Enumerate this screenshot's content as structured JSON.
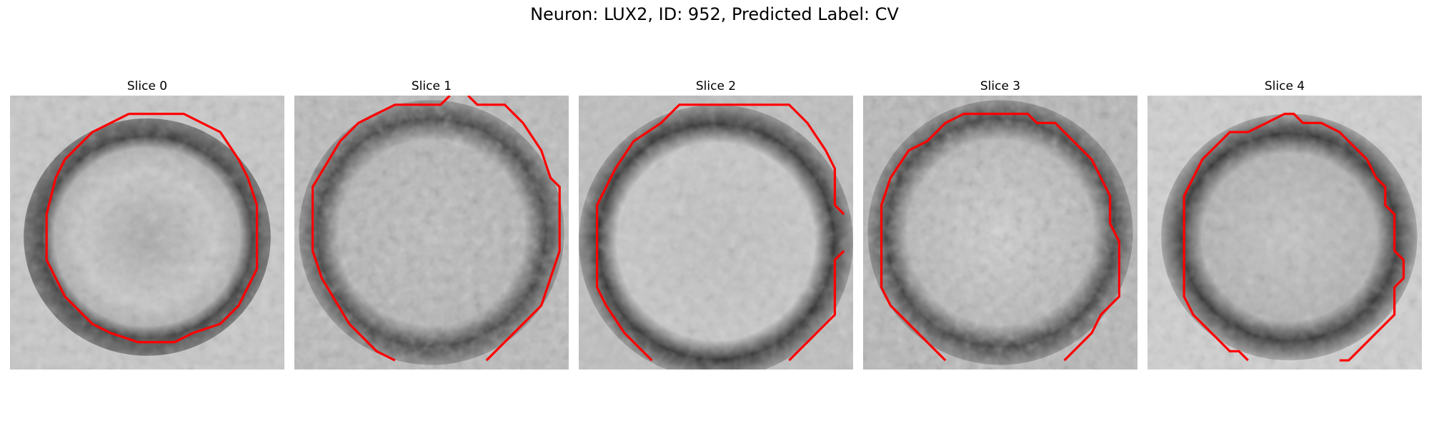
{
  "figure": {
    "title": "Neuron: LUX2, ID: 952, Predicted Label: CV"
  },
  "panels": [
    {
      "title": "Slice 0"
    },
    {
      "title": "Slice 1"
    },
    {
      "title": "Slice 2"
    },
    {
      "title": "Slice 3"
    },
    {
      "title": "Slice 4"
    }
  ],
  "colors": {
    "contour": "#ff0000",
    "background": "#ffffff"
  }
}
